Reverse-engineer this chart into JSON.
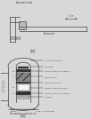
{
  "bg_color": "#e8e8e8",
  "line_color": "#444444",
  "dark_fill": "#333333",
  "light_fill": "#bbbbbb",
  "mid_fill": "#888888",
  "white_fill": "#f5f5f5",
  "title_a": "(a)",
  "title_b": "(b)",
  "labels_right": [
    "Volume capacity",
    "Jet pump",
    "Room heat exchanger 1",
    "Regenerator",
    "Heat exchanger",
    "Buffer tube (tapered)",
    "Room heat exchanger 2",
    "Rectifier"
  ],
  "label_left_top": "Acoustic load",
  "label_left_bottom": "Return line\n(corrugated)",
  "label_bottom": "Resonator connection",
  "label_top_right": "1 m",
  "fig_bg": "#d8d8d8"
}
